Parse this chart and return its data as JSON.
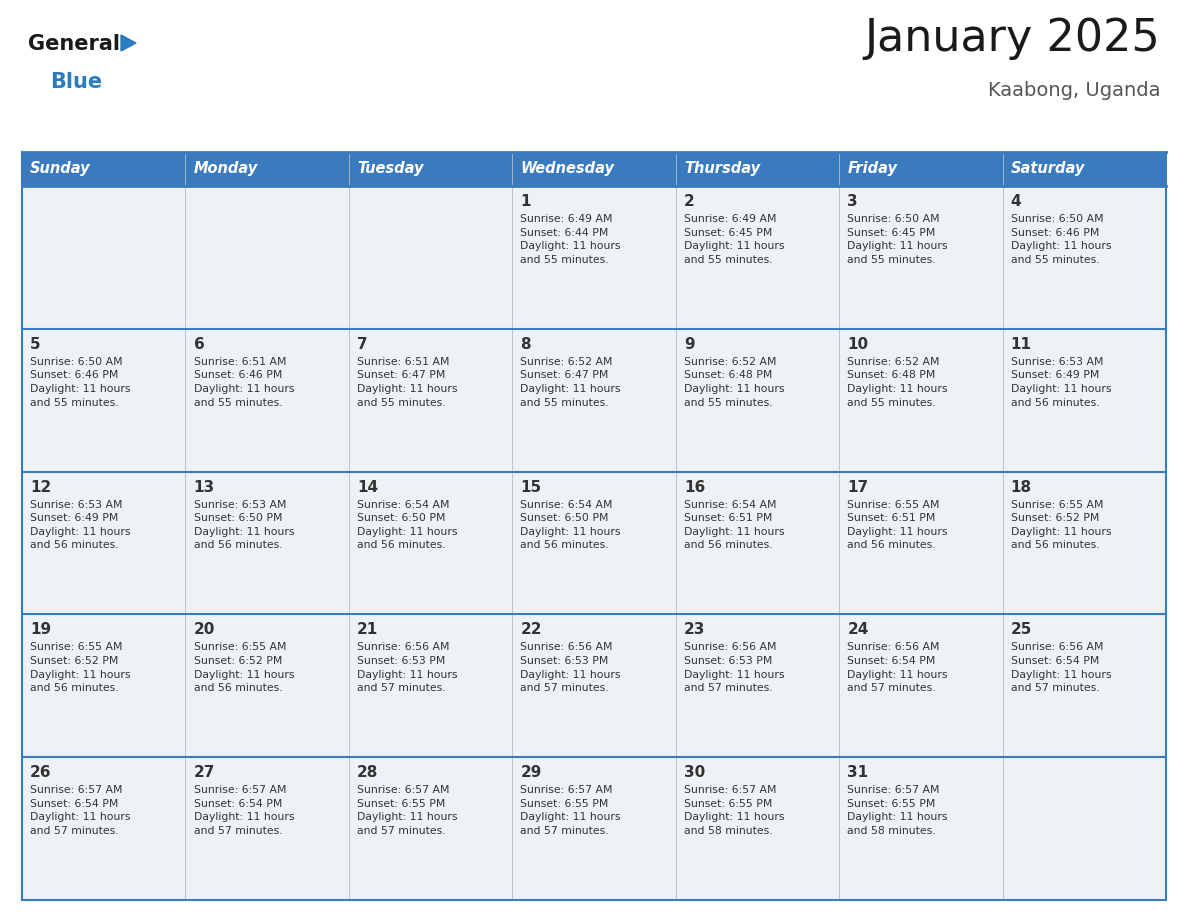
{
  "title": "January 2025",
  "subtitle": "Kaabong, Uganda",
  "header_color": "#3a7abf",
  "header_text_color": "#ffffff",
  "cell_bg_color": "#eef2f7",
  "border_color": "#3a7abf",
  "text_color": "#333333",
  "day_headers": [
    "Sunday",
    "Monday",
    "Tuesday",
    "Wednesday",
    "Thursday",
    "Friday",
    "Saturday"
  ],
  "weeks": [
    [
      {
        "day": "",
        "info": ""
      },
      {
        "day": "",
        "info": ""
      },
      {
        "day": "",
        "info": ""
      },
      {
        "day": "1",
        "info": "Sunrise: 6:49 AM\nSunset: 6:44 PM\nDaylight: 11 hours\nand 55 minutes."
      },
      {
        "day": "2",
        "info": "Sunrise: 6:49 AM\nSunset: 6:45 PM\nDaylight: 11 hours\nand 55 minutes."
      },
      {
        "day": "3",
        "info": "Sunrise: 6:50 AM\nSunset: 6:45 PM\nDaylight: 11 hours\nand 55 minutes."
      },
      {
        "day": "4",
        "info": "Sunrise: 6:50 AM\nSunset: 6:46 PM\nDaylight: 11 hours\nand 55 minutes."
      }
    ],
    [
      {
        "day": "5",
        "info": "Sunrise: 6:50 AM\nSunset: 6:46 PM\nDaylight: 11 hours\nand 55 minutes."
      },
      {
        "day": "6",
        "info": "Sunrise: 6:51 AM\nSunset: 6:46 PM\nDaylight: 11 hours\nand 55 minutes."
      },
      {
        "day": "7",
        "info": "Sunrise: 6:51 AM\nSunset: 6:47 PM\nDaylight: 11 hours\nand 55 minutes."
      },
      {
        "day": "8",
        "info": "Sunrise: 6:52 AM\nSunset: 6:47 PM\nDaylight: 11 hours\nand 55 minutes."
      },
      {
        "day": "9",
        "info": "Sunrise: 6:52 AM\nSunset: 6:48 PM\nDaylight: 11 hours\nand 55 minutes."
      },
      {
        "day": "10",
        "info": "Sunrise: 6:52 AM\nSunset: 6:48 PM\nDaylight: 11 hours\nand 55 minutes."
      },
      {
        "day": "11",
        "info": "Sunrise: 6:53 AM\nSunset: 6:49 PM\nDaylight: 11 hours\nand 56 minutes."
      }
    ],
    [
      {
        "day": "12",
        "info": "Sunrise: 6:53 AM\nSunset: 6:49 PM\nDaylight: 11 hours\nand 56 minutes."
      },
      {
        "day": "13",
        "info": "Sunrise: 6:53 AM\nSunset: 6:50 PM\nDaylight: 11 hours\nand 56 minutes."
      },
      {
        "day": "14",
        "info": "Sunrise: 6:54 AM\nSunset: 6:50 PM\nDaylight: 11 hours\nand 56 minutes."
      },
      {
        "day": "15",
        "info": "Sunrise: 6:54 AM\nSunset: 6:50 PM\nDaylight: 11 hours\nand 56 minutes."
      },
      {
        "day": "16",
        "info": "Sunrise: 6:54 AM\nSunset: 6:51 PM\nDaylight: 11 hours\nand 56 minutes."
      },
      {
        "day": "17",
        "info": "Sunrise: 6:55 AM\nSunset: 6:51 PM\nDaylight: 11 hours\nand 56 minutes."
      },
      {
        "day": "18",
        "info": "Sunrise: 6:55 AM\nSunset: 6:52 PM\nDaylight: 11 hours\nand 56 minutes."
      }
    ],
    [
      {
        "day": "19",
        "info": "Sunrise: 6:55 AM\nSunset: 6:52 PM\nDaylight: 11 hours\nand 56 minutes."
      },
      {
        "day": "20",
        "info": "Sunrise: 6:55 AM\nSunset: 6:52 PM\nDaylight: 11 hours\nand 56 minutes."
      },
      {
        "day": "21",
        "info": "Sunrise: 6:56 AM\nSunset: 6:53 PM\nDaylight: 11 hours\nand 57 minutes."
      },
      {
        "day": "22",
        "info": "Sunrise: 6:56 AM\nSunset: 6:53 PM\nDaylight: 11 hours\nand 57 minutes."
      },
      {
        "day": "23",
        "info": "Sunrise: 6:56 AM\nSunset: 6:53 PM\nDaylight: 11 hours\nand 57 minutes."
      },
      {
        "day": "24",
        "info": "Sunrise: 6:56 AM\nSunset: 6:54 PM\nDaylight: 11 hours\nand 57 minutes."
      },
      {
        "day": "25",
        "info": "Sunrise: 6:56 AM\nSunset: 6:54 PM\nDaylight: 11 hours\nand 57 minutes."
      }
    ],
    [
      {
        "day": "26",
        "info": "Sunrise: 6:57 AM\nSunset: 6:54 PM\nDaylight: 11 hours\nand 57 minutes."
      },
      {
        "day": "27",
        "info": "Sunrise: 6:57 AM\nSunset: 6:54 PM\nDaylight: 11 hours\nand 57 minutes."
      },
      {
        "day": "28",
        "info": "Sunrise: 6:57 AM\nSunset: 6:55 PM\nDaylight: 11 hours\nand 57 minutes."
      },
      {
        "day": "29",
        "info": "Sunrise: 6:57 AM\nSunset: 6:55 PM\nDaylight: 11 hours\nand 57 minutes."
      },
      {
        "day": "30",
        "info": "Sunrise: 6:57 AM\nSunset: 6:55 PM\nDaylight: 11 hours\nand 58 minutes."
      },
      {
        "day": "31",
        "info": "Sunrise: 6:57 AM\nSunset: 6:55 PM\nDaylight: 11 hours\nand 58 minutes."
      },
      {
        "day": "",
        "info": ""
      }
    ]
  ],
  "logo_general_color": "#1a1a1a",
  "logo_blue_color": "#2b7bbf",
  "fig_width": 11.88,
  "fig_height": 9.18,
  "dpi": 100
}
